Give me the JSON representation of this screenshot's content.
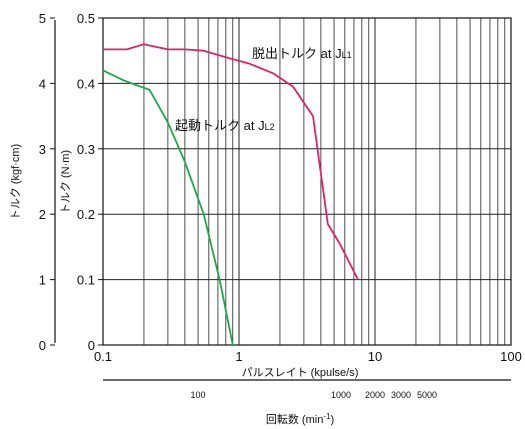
{
  "chart_data": {
    "type": "line",
    "title": "",
    "xlabel": "パルスレイト (kpulse/s)",
    "ylabel_left": "トルク (kgf·cm)",
    "ylabel_right": "トルク (N·m)",
    "x2label": "回転数 (min-1)",
    "x_scale": "log",
    "xlim": [
      0.1,
      100
    ],
    "ylim": [
      0,
      0.5
    ],
    "ylim_kgf": [
      0,
      5
    ],
    "grid": true,
    "x_ticks": [
      "0.1",
      "1",
      "10",
      "100"
    ],
    "y_ticks": [
      "0",
      "0.1",
      "0.2",
      "0.3",
      "0.4",
      "0.5"
    ],
    "y_kgf_ticks": [
      "0",
      "1",
      "2",
      "3",
      "4",
      "5"
    ],
    "rpm_ticks": [
      "100",
      "1000",
      "2000",
      "3000",
      "5000"
    ],
    "series": [
      {
        "name": "脱出トルク at JL1",
        "color": "#e0206a",
        "x": [
          0.1,
          0.15,
          0.2,
          0.3,
          0.4,
          0.55,
          0.8,
          1.2,
          1.8,
          2.5,
          3.5,
          4.5,
          5.5,
          7.5
        ],
        "y": [
          0.452,
          0.452,
          0.46,
          0.452,
          0.452,
          0.45,
          0.44,
          0.43,
          0.415,
          0.395,
          0.35,
          0.185,
          0.155,
          0.1
        ]
      },
      {
        "name": "起動トルク at JL2",
        "color": "#1ea84a",
        "x": [
          0.1,
          0.14,
          0.22,
          0.3,
          0.4,
          0.55,
          0.72,
          0.9
        ],
        "y": [
          0.42,
          0.405,
          0.39,
          0.34,
          0.28,
          0.2,
          0.1,
          0.0
        ]
      }
    ],
    "annotations": [
      {
        "main": "脱出トルク at J",
        "sub": "L1",
        "series": 0
      },
      {
        "main": "起動トルク at J",
        "sub": "L2",
        "series": 1
      }
    ]
  }
}
